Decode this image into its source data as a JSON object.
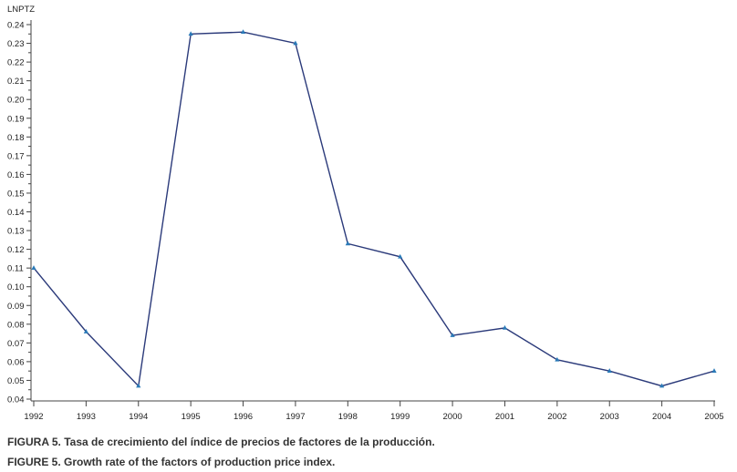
{
  "chart_data": {
    "type": "line",
    "ylabel": "LNPTZ",
    "x": [
      "1992",
      "1993",
      "1994",
      "1995",
      "1996",
      "1997",
      "1998",
      "1999",
      "2000",
      "2001",
      "2002",
      "2003",
      "2004",
      "2005"
    ],
    "y": [
      0.11,
      0.076,
      0.047,
      0.235,
      0.236,
      0.23,
      0.123,
      0.116,
      0.074,
      0.078,
      0.061,
      0.055,
      0.047,
      0.055
    ],
    "ylim": [
      0.04,
      0.24
    ],
    "yticks": [
      "0.04",
      "0.05",
      "0.06",
      "0.07",
      "0.08",
      "0.09",
      "0.10",
      "0.11",
      "0.12",
      "0.13",
      "0.14",
      "0.15",
      "0.16",
      "0.17",
      "0.18",
      "0.19",
      "0.20",
      "0.21",
      "0.22",
      "0.23",
      "0.24"
    ],
    "grid": false,
    "line_color": "#2b3a7a",
    "marker_color": "#2a7ab8"
  },
  "captions": {
    "spanish": "FIGURA 5. Tasa de crecimiento del índice de precios de factores de la producción.",
    "english": "FIGURE 5. Growth rate of the factors of production price index."
  }
}
